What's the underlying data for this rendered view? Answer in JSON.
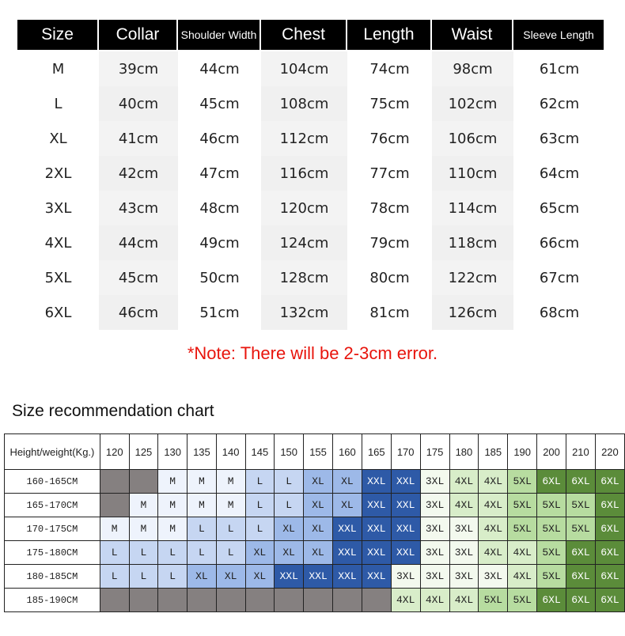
{
  "size_table": {
    "headers": [
      "Size",
      "Collar",
      "Shoulder Width",
      "Chest",
      "Length",
      "Waist",
      "Sleeve Length"
    ],
    "rows": [
      [
        "M",
        "39cm",
        "44cm",
        "104cm",
        "74cm",
        "98cm",
        "61cm"
      ],
      [
        "L",
        "40cm",
        "45cm",
        "108cm",
        "75cm",
        "102cm",
        "62cm"
      ],
      [
        "XL",
        "41cm",
        "46cm",
        "112cm",
        "76cm",
        "106cm",
        "63cm"
      ],
      [
        "2XL",
        "42cm",
        "47cm",
        "116cm",
        "77cm",
        "110cm",
        "64cm"
      ],
      [
        "3XL",
        "43cm",
        "48cm",
        "120cm",
        "78cm",
        "114cm",
        "65cm"
      ],
      [
        "4XL",
        "44cm",
        "49cm",
        "124cm",
        "79cm",
        "118cm",
        "66cm"
      ],
      [
        "5XL",
        "45cm",
        "50cm",
        "128cm",
        "80cm",
        "122cm",
        "67cm"
      ],
      [
        "6XL",
        "46cm",
        "51cm",
        "132cm",
        "81cm",
        "126cm",
        "68cm"
      ]
    ]
  },
  "note": "*Note: There will be 2-3cm error.",
  "recommendation": {
    "title": "Size recommendation chart",
    "corner_label": "Height/weight(Kg.)",
    "weights": [
      "120",
      "125",
      "130",
      "135",
      "140",
      "145",
      "150",
      "155",
      "160",
      "165",
      "170",
      "175",
      "180",
      "185",
      "190",
      "200",
      "210",
      "220"
    ],
    "rows": [
      {
        "height": "160-165CM",
        "sizes": [
          "",
          "",
          "M",
          "M",
          "M",
          "L",
          "L",
          "XL",
          "XL",
          "XXL",
          "XXL",
          "3XL",
          "4XL",
          "4XL",
          "5XL",
          "6XL",
          "6XL",
          "6XL"
        ]
      },
      {
        "height": "165-170CM",
        "sizes": [
          "",
          "M",
          "M",
          "M",
          "M",
          "L",
          "L",
          "XL",
          "XL",
          "XXL",
          "XXL",
          "3XL",
          "4XL",
          "4XL",
          "5XL",
          "5XL",
          "5XL",
          "6XL"
        ]
      },
      {
        "height": "170-175CM",
        "sizes": [
          "M",
          "M",
          "M",
          "L",
          "L",
          "L",
          "XL",
          "XL",
          "XXL",
          "XXL",
          "XXL",
          "3XL",
          "3XL",
          "4XL",
          "5XL",
          "5XL",
          "5XL",
          "6XL"
        ]
      },
      {
        "height": "175-180CM",
        "sizes": [
          "L",
          "L",
          "L",
          "L",
          "L",
          "XL",
          "XL",
          "XL",
          "XXL",
          "XXL",
          "XXL",
          "3XL",
          "3XL",
          "4XL",
          "4XL",
          "5XL",
          "6XL",
          "6XL"
        ]
      },
      {
        "height": "180-185CM",
        "sizes": [
          "L",
          "L",
          "L",
          "XL",
          "XL",
          "XL",
          "XXL",
          "XXL",
          "XXL",
          "XXL",
          "3XL",
          "3XL",
          "3XL",
          "3XL",
          "4XL",
          "5XL",
          "6XL",
          "6XL"
        ]
      },
      {
        "height": "185-190CM",
        "sizes": [
          "",
          "",
          "",
          "",
          "",
          "",
          "",
          "",
          "",
          "",
          "4XL",
          "4XL",
          "4XL",
          "5XL",
          "5XL",
          "6XL",
          "6XL",
          "6XL"
        ]
      }
    ],
    "colors": {
      "empty": "#858080",
      "M": "#eef3fc",
      "L": "#c6d6f2",
      "XL": "#9db9e8",
      "XXL": "#2e5aa7",
      "3XL": "#f3f9ee",
      "4XL": "#d8edc9",
      "5XL": "#b7dca0",
      "6XL": "#5b8c3a"
    }
  }
}
